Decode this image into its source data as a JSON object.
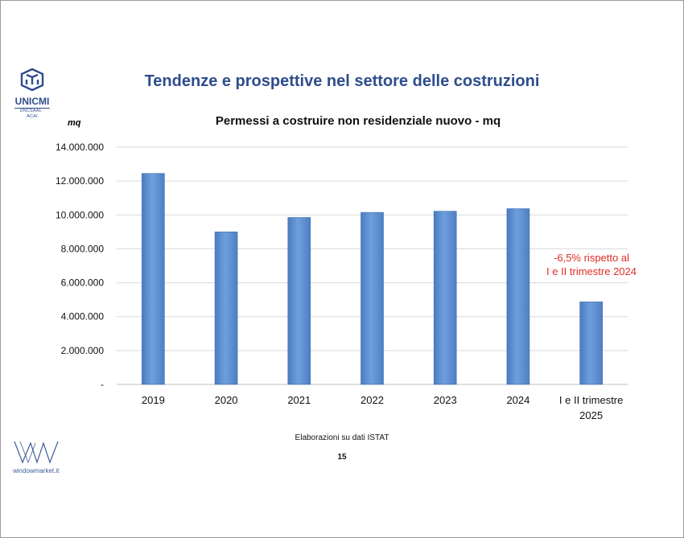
{
  "slide": {
    "title": "Tendenze e prospettive nel settore delle costruzioni",
    "unit_label": "mq",
    "source": "Elaborazioni su dati ISTAT",
    "page_number": "15"
  },
  "logos": {
    "unicmi_name": "UNICMI",
    "unicmi_sub": "UNCSAAL · ACAI",
    "windowmarket": "windowmarket.it"
  },
  "annotation": {
    "line1": "-6,5% rispetto al",
    "line2": "I e II trimestre 2024"
  },
  "colors": {
    "bar": "#5b8ed0",
    "title": "#2e4d8c",
    "annotation": "#e12b24"
  },
  "chart_data": {
    "type": "bar",
    "title": "Permessi a costruire non residenziale nuovo - mq",
    "categories": [
      "2019",
      "2020",
      "2021",
      "2022",
      "2023",
      "2024",
      "I e II trimestre 2025"
    ],
    "category_lines": [
      [
        "2019"
      ],
      [
        "2020"
      ],
      [
        "2021"
      ],
      [
        "2022"
      ],
      [
        "2023"
      ],
      [
        "2024"
      ],
      [
        "I e II trimestre",
        "2025"
      ]
    ],
    "values": [
      12450000,
      9000000,
      9850000,
      10150000,
      10220000,
      10370000,
      4870000
    ],
    "ylabel": "mq",
    "xlabel": "",
    "ylim": [
      0,
      14000000
    ],
    "yticks": [
      0,
      2000000,
      4000000,
      6000000,
      8000000,
      10000000,
      12000000,
      14000000
    ],
    "ytick_labels": [
      "-",
      "2.000.000",
      "4.000.000",
      "6.000.000",
      "8.000.000",
      "10.000.000",
      "12.000.000",
      "14.000.000"
    ],
    "grid": true,
    "legend": "none"
  }
}
